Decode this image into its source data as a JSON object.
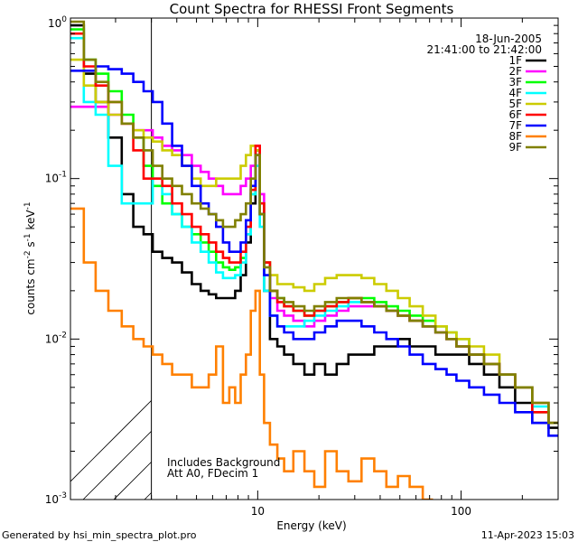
{
  "footer": {
    "generated_by": "Generated by hsi_min_spectra_plot.pro",
    "timestamp": "11-Apr-2023 15:03"
  },
  "colors": {
    "1F": "#000000",
    "2F": "#ff00ff",
    "3F": "#00ff00",
    "4F": "#00ffff",
    "5F": "#cccc00",
    "6F": "#ff0000",
    "7F": "#0000ff",
    "8F": "#ff8000",
    "9F": "#808000"
  },
  "chart_data": {
    "type": "line",
    "title": "Count Spectra for RHESSI Front Segments",
    "xlabel": "Energy (keV)",
    "ylabel_parts": {
      "base": "counts cm",
      "exp1": "-2",
      "mid": " s",
      "exp2": "-1",
      "tail": " keV",
      "exp3": "-1"
    },
    "xscale": "log",
    "yscale": "log",
    "xlim": [
      1.2,
      300
    ],
    "ylim": [
      0.001,
      1
    ],
    "x_ticks": [
      {
        "value": 10,
        "label": "10"
      },
      {
        "value": 100,
        "label": "100"
      }
    ],
    "y_ticks": [
      {
        "value": 0.001,
        "label": "10",
        "exp": "-3"
      },
      {
        "value": 0.01,
        "label": "10",
        "exp": "-2"
      },
      {
        "value": 0.1,
        "label": "10",
        "exp": "-1"
      },
      {
        "value": 1,
        "label": "10",
        "exp": "0"
      }
    ],
    "date": "18-Jun-2005",
    "time_range": "21:41:00 to 21:42:00",
    "notes": [
      "Includes Background",
      "Att A0, FDecim 1"
    ],
    "excluded_region_below_keV": 3,
    "series": [
      {
        "name": "1F",
        "x": [
          1.3,
          1.5,
          1.7,
          2.0,
          2.3,
          2.6,
          2.9,
          3.2,
          3.6,
          4.0,
          4.5,
          5.0,
          5.5,
          6.0,
          6.5,
          7.0,
          7.5,
          8.0,
          8.5,
          9.0,
          9.5,
          10.0,
          10.5,
          11.0,
          12.0,
          13.0,
          14.0,
          16.0,
          18.0,
          20.0,
          23.0,
          26.0,
          30.0,
          35.0,
          40.0,
          46.0,
          52.0,
          60.0,
          70.0,
          80.0,
          90.0,
          100.0,
          120.0,
          140.0,
          170.0,
          200.0,
          250.0,
          290.0
        ],
        "y": [
          0.9,
          0.45,
          0.3,
          0.18,
          0.08,
          0.05,
          0.045,
          0.035,
          0.032,
          0.03,
          0.026,
          0.022,
          0.02,
          0.019,
          0.018,
          0.018,
          0.018,
          0.02,
          0.025,
          0.04,
          0.07,
          0.15,
          0.06,
          0.02,
          0.01,
          0.009,
          0.008,
          0.007,
          0.006,
          0.007,
          0.006,
          0.007,
          0.008,
          0.008,
          0.009,
          0.009,
          0.01,
          0.009,
          0.009,
          0.008,
          0.008,
          0.008,
          0.007,
          0.006,
          0.005,
          0.004,
          0.003,
          0.0028
        ]
      },
      {
        "name": "2F",
        "x": [
          1.3,
          1.5,
          1.7,
          2.0,
          2.3,
          2.6,
          2.9,
          3.2,
          3.6,
          4.0,
          4.5,
          5.0,
          5.5,
          6.0,
          6.5,
          7.0,
          7.5,
          8.0,
          8.5,
          9.0,
          9.5,
          10.0,
          10.5,
          11.0,
          12.0,
          13.0,
          14.0,
          16.0,
          18.0,
          20.0,
          23.0,
          26.0,
          30.0,
          35.0,
          40.0,
          46.0,
          52.0,
          60.0,
          70.0,
          80.0,
          90.0,
          100.0,
          120.0,
          140.0,
          170.0,
          200.0,
          250.0,
          290.0
        ],
        "y": [
          0.28,
          0.28,
          0.28,
          0.25,
          0.22,
          0.2,
          0.2,
          0.18,
          0.16,
          0.15,
          0.14,
          0.12,
          0.11,
          0.1,
          0.09,
          0.08,
          0.08,
          0.08,
          0.09,
          0.1,
          0.12,
          0.16,
          0.08,
          0.03,
          0.018,
          0.015,
          0.014,
          0.013,
          0.012,
          0.013,
          0.014,
          0.015,
          0.016,
          0.016,
          0.016,
          0.015,
          0.014,
          0.013,
          0.012,
          0.011,
          0.01,
          0.009,
          0.008,
          0.007,
          0.006,
          0.005,
          0.004,
          0.003
        ]
      },
      {
        "name": "3F",
        "x": [
          1.3,
          1.5,
          1.7,
          2.0,
          2.3,
          2.6,
          2.9,
          3.2,
          3.6,
          4.0,
          4.5,
          5.0,
          5.5,
          6.0,
          6.5,
          7.0,
          7.5,
          8.0,
          8.5,
          9.0,
          9.5,
          10.0,
          10.5,
          11.0,
          12.0,
          13.0,
          14.0,
          16.0,
          18.0,
          20.0,
          23.0,
          26.0,
          30.0,
          35.0,
          40.0,
          46.0,
          52.0,
          60.0,
          70.0,
          80.0,
          90.0,
          100.0,
          120.0,
          140.0,
          170.0,
          200.0,
          250.0,
          290.0
        ],
        "y": [
          0.85,
          0.55,
          0.45,
          0.35,
          0.25,
          0.18,
          0.12,
          0.09,
          0.07,
          0.06,
          0.05,
          0.045,
          0.04,
          0.035,
          0.03,
          0.028,
          0.027,
          0.028,
          0.032,
          0.045,
          0.08,
          0.15,
          0.07,
          0.03,
          0.02,
          0.018,
          0.016,
          0.015,
          0.014,
          0.015,
          0.016,
          0.017,
          0.018,
          0.018,
          0.017,
          0.016,
          0.015,
          0.014,
          0.013,
          0.012,
          0.011,
          0.01,
          0.008,
          0.007,
          0.006,
          0.005,
          0.0035,
          0.003
        ]
      },
      {
        "name": "4F",
        "x": [
          1.3,
          1.5,
          1.7,
          2.0,
          2.3,
          2.6,
          2.9,
          3.2,
          3.6,
          4.0,
          4.5,
          5.0,
          5.5,
          6.0,
          6.5,
          7.0,
          7.5,
          8.0,
          8.5,
          9.0,
          9.5,
          10.0,
          10.5,
          11.0,
          12.0,
          13.0,
          14.0,
          16.0,
          18.0,
          20.0,
          23.0,
          26.0,
          30.0,
          35.0,
          40.0,
          46.0,
          52.0,
          60.0,
          70.0,
          80.0,
          90.0,
          100.0,
          120.0,
          140.0,
          170.0,
          200.0,
          250.0,
          290.0
        ],
        "y": [
          0.75,
          0.3,
          0.25,
          0.12,
          0.07,
          0.07,
          0.07,
          0.1,
          0.08,
          0.06,
          0.05,
          0.04,
          0.035,
          0.03,
          0.026,
          0.024,
          0.024,
          0.025,
          0.03,
          0.045,
          0.08,
          0.12,
          0.05,
          0.02,
          0.014,
          0.012,
          0.012,
          0.012,
          0.013,
          0.014,
          0.015,
          0.016,
          0.017,
          0.017,
          0.016,
          0.015,
          0.014,
          0.013,
          0.012,
          0.011,
          0.01,
          0.009,
          0.008,
          0.007,
          0.006,
          0.005,
          0.0038,
          0.003
        ]
      },
      {
        "name": "5F",
        "x": [
          1.3,
          1.5,
          1.7,
          2.0,
          2.3,
          2.6,
          2.9,
          3.2,
          3.6,
          4.0,
          4.5,
          5.0,
          5.5,
          6.0,
          6.5,
          7.0,
          7.5,
          8.0,
          8.5,
          9.0,
          9.5,
          10.0,
          10.5,
          11.0,
          12.0,
          13.0,
          14.0,
          16.0,
          18.0,
          20.0,
          23.0,
          26.0,
          30.0,
          35.0,
          40.0,
          46.0,
          52.0,
          60.0,
          70.0,
          80.0,
          90.0,
          100.0,
          120.0,
          140.0,
          170.0,
          200.0,
          250.0,
          290.0
        ],
        "y": [
          0.55,
          0.38,
          0.3,
          0.25,
          0.22,
          0.2,
          0.18,
          0.17,
          0.15,
          0.14,
          0.12,
          0.1,
          0.09,
          0.09,
          0.1,
          0.1,
          0.1,
          0.1,
          0.12,
          0.14,
          0.16,
          0.15,
          0.06,
          0.03,
          0.025,
          0.022,
          0.022,
          0.021,
          0.02,
          0.022,
          0.024,
          0.025,
          0.025,
          0.024,
          0.022,
          0.02,
          0.018,
          0.016,
          0.014,
          0.012,
          0.011,
          0.01,
          0.009,
          0.008,
          0.006,
          0.005,
          0.004,
          0.003
        ]
      },
      {
        "name": "6F",
        "x": [
          1.3,
          1.5,
          1.7,
          2.0,
          2.3,
          2.6,
          2.9,
          3.2,
          3.6,
          4.0,
          4.5,
          5.0,
          5.5,
          6.0,
          6.5,
          7.0,
          7.5,
          8.0,
          8.5,
          9.0,
          9.5,
          10.0,
          10.5,
          11.0,
          12.0,
          13.0,
          14.0,
          16.0,
          18.0,
          20.0,
          23.0,
          26.0,
          30.0,
          35.0,
          40.0,
          46.0,
          52.0,
          60.0,
          70.0,
          80.0,
          90.0,
          100.0,
          120.0,
          140.0,
          170.0,
          200.0,
          250.0,
          290.0
        ],
        "y": [
          0.8,
          0.5,
          0.38,
          0.3,
          0.22,
          0.15,
          0.1,
          0.1,
          0.09,
          0.07,
          0.06,
          0.05,
          0.045,
          0.04,
          0.035,
          0.032,
          0.03,
          0.03,
          0.035,
          0.05,
          0.085,
          0.16,
          0.07,
          0.03,
          0.02,
          0.017,
          0.016,
          0.015,
          0.014,
          0.015,
          0.016,
          0.017,
          0.018,
          0.017,
          0.016,
          0.015,
          0.014,
          0.013,
          0.012,
          0.011,
          0.01,
          0.009,
          0.008,
          0.007,
          0.006,
          0.005,
          0.0035,
          0.003
        ]
      },
      {
        "name": "7F",
        "x": [
          1.3,
          1.5,
          1.7,
          2.0,
          2.3,
          2.6,
          2.9,
          3.2,
          3.6,
          4.0,
          4.5,
          5.0,
          5.5,
          6.0,
          6.5,
          7.0,
          7.5,
          8.0,
          8.5,
          9.0,
          9.5,
          10.0,
          10.5,
          11.0,
          12.0,
          13.0,
          14.0,
          16.0,
          18.0,
          20.0,
          23.0,
          26.0,
          30.0,
          35.0,
          40.0,
          46.0,
          52.0,
          60.0,
          70.0,
          80.0,
          90.0,
          100.0,
          120.0,
          140.0,
          170.0,
          200.0,
          250.0,
          290.0
        ],
        "y": [
          0.47,
          0.47,
          0.5,
          0.48,
          0.45,
          0.4,
          0.35,
          0.3,
          0.22,
          0.16,
          0.12,
          0.09,
          0.07,
          0.06,
          0.05,
          0.04,
          0.035,
          0.035,
          0.04,
          0.055,
          0.09,
          0.14,
          0.06,
          0.025,
          0.014,
          0.012,
          0.011,
          0.01,
          0.01,
          0.011,
          0.012,
          0.013,
          0.013,
          0.012,
          0.011,
          0.01,
          0.009,
          0.008,
          0.007,
          0.0065,
          0.006,
          0.0055,
          0.005,
          0.0045,
          0.004,
          0.0035,
          0.003,
          0.0025
        ]
      },
      {
        "name": "8F",
        "x": [
          1.3,
          1.5,
          1.7,
          2.0,
          2.3,
          2.6,
          2.9,
          3.2,
          3.6,
          4.0,
          4.5,
          5.0,
          5.5,
          6.0,
          6.5,
          7.0,
          7.5,
          8.0,
          8.5,
          9.0,
          9.5,
          10.0,
          10.5,
          11.0,
          12.0,
          13.0,
          14.0,
          16.0,
          18.0,
          20.0,
          23.0,
          26.0,
          30.0,
          35.0,
          40.0,
          46.0,
          52.0,
          60.0,
          70.0
        ],
        "y": [
          0.065,
          0.03,
          0.02,
          0.015,
          0.012,
          0.01,
          0.009,
          0.008,
          0.007,
          0.006,
          0.006,
          0.005,
          0.005,
          0.006,
          0.009,
          0.004,
          0.005,
          0.004,
          0.006,
          0.008,
          0.015,
          0.02,
          0.006,
          0.003,
          0.0022,
          0.0018,
          0.0015,
          0.002,
          0.0015,
          0.0012,
          0.002,
          0.0015,
          0.0013,
          0.0018,
          0.0015,
          0.0012,
          0.0014,
          0.0012,
          0.001
        ]
      },
      {
        "name": "9F",
        "x": [
          1.3,
          1.5,
          1.7,
          2.0,
          2.3,
          2.6,
          2.9,
          3.2,
          3.6,
          4.0,
          4.5,
          5.0,
          5.5,
          6.0,
          6.5,
          7.0,
          7.5,
          8.0,
          8.5,
          9.0,
          9.5,
          10.0,
          10.5,
          11.0,
          12.0,
          13.0,
          14.0,
          16.0,
          18.0,
          20.0,
          23.0,
          26.0,
          30.0,
          35.0,
          40.0,
          46.0,
          52.0,
          60.0,
          70.0,
          80.0,
          90.0,
          100.0,
          120.0,
          140.0,
          170.0,
          200.0,
          250.0,
          290.0
        ],
        "y": [
          0.95,
          0.55,
          0.4,
          0.3,
          0.22,
          0.18,
          0.15,
          0.12,
          0.1,
          0.09,
          0.08,
          0.07,
          0.065,
          0.06,
          0.055,
          0.05,
          0.05,
          0.055,
          0.06,
          0.07,
          0.1,
          0.14,
          0.06,
          0.028,
          0.02,
          0.018,
          0.017,
          0.016,
          0.015,
          0.016,
          0.017,
          0.018,
          0.018,
          0.017,
          0.016,
          0.015,
          0.014,
          0.013,
          0.012,
          0.011,
          0.01,
          0.009,
          0.008,
          0.007,
          0.006,
          0.005,
          0.004,
          0.003
        ]
      }
    ]
  }
}
